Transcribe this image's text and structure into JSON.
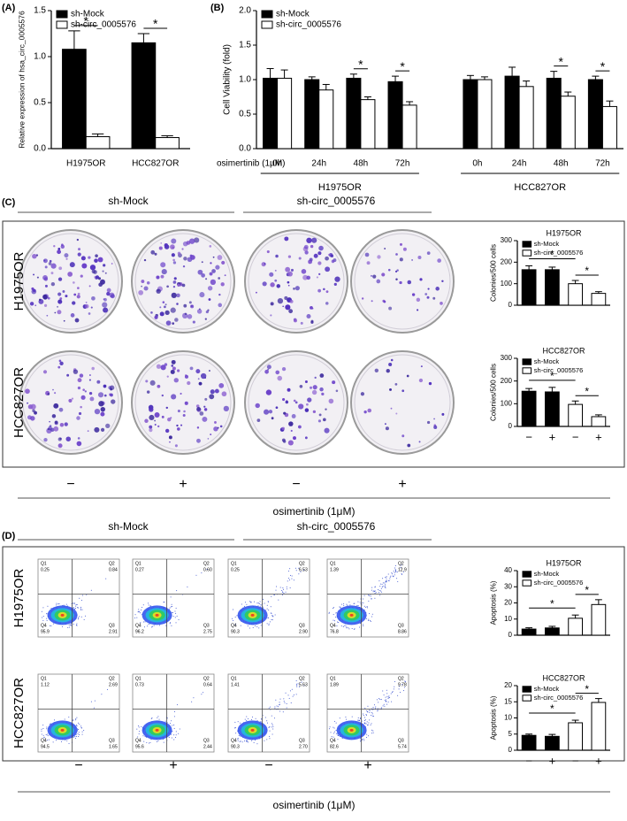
{
  "panels": [
    "(A)",
    "(B)",
    "(C)",
    "(D)"
  ],
  "chart_data": [
    {
      "type": "bar",
      "ylabel": "Relative expression of hsa_circ_0005576",
      "categories": [
        "H1975OR",
        "HCC827OR"
      ],
      "series": [
        {
          "name": "sh-Mock",
          "color": "#000000",
          "values": [
            1.08,
            1.15
          ],
          "errors": [
            0.2,
            0.1
          ]
        },
        {
          "name": "sh-circ_0005576",
          "color": "#ffffff",
          "values": [
            0.13,
            0.12
          ],
          "errors": [
            0.03,
            0.02
          ]
        }
      ],
      "ylim": [
        0,
        1.5
      ],
      "yticks": [
        {
          "value": 0,
          "label": "0.0"
        },
        {
          "value": 0.5,
          "label": "0.5"
        },
        {
          "value": 1,
          "label": "1.0"
        },
        {
          "value": 1.5,
          "label": "1.5"
        }
      ],
      "significance": [
        "*",
        "*"
      ],
      "legend": "upper left"
    },
    {
      "type": "bar",
      "ylabel": "Cell Viability (fold)",
      "xlabel": "osimertinib (1μM)",
      "categories": [
        "0h",
        "24h",
        "48h",
        "72h",
        "0h",
        "24h",
        "48h",
        "72h"
      ],
      "groups": [
        "H1975OR",
        "HCC827OR"
      ],
      "series": [
        {
          "name": "sh-Mock",
          "color": "#000000",
          "values": [
            1.02,
            1.0,
            1.02,
            0.97,
            1.0,
            1.05,
            1.02,
            1.0
          ],
          "errors": [
            0.14,
            0.04,
            0.06,
            0.08,
            0.06,
            0.13,
            0.1,
            0.05
          ]
        },
        {
          "name": "sh-circ_0005576",
          "color": "#ffffff",
          "values": [
            1.02,
            0.85,
            0.71,
            0.63,
            1.0,
            0.9,
            0.76,
            0.61
          ],
          "errors": [
            0.12,
            0.08,
            0.04,
            0.05,
            0.04,
            0.08,
            0.06,
            0.08
          ]
        }
      ],
      "ylim": [
        0,
        2
      ],
      "yticks": [
        {
          "value": 0,
          "label": "0.0"
        },
        {
          "value": 0.5,
          "label": "0.5"
        },
        {
          "value": 1,
          "label": "1.0"
        },
        {
          "value": 1.5,
          "label": "1.5"
        },
        {
          "value": 2,
          "label": "2.0"
        }
      ],
      "significance": [
        null,
        null,
        "*",
        "*",
        null,
        null,
        "*",
        "*"
      ],
      "legend": "upper left"
    },
    {
      "type": "bar",
      "title": "H1975OR",
      "ylabel": "Colonies/500 cells",
      "categories": [
        null,
        null,
        null,
        null
      ],
      "series": [
        {
          "name": "sh-Mock",
          "color": "#000000",
          "values": [
            165,
            165,
            null,
            null
          ],
          "errors": [
            18,
            12,
            null,
            null
          ]
        },
        {
          "name": "sh-circ_0005576",
          "color": "#ffffff",
          "values": [
            null,
            null,
            100,
            55
          ],
          "errors": [
            null,
            null,
            15,
            8
          ]
        }
      ],
      "ylim": [
        0,
        300
      ],
      "yticks": [
        0,
        100,
        200,
        300
      ],
      "significance": [
        "*",
        "*"
      ],
      "legend": "upper left"
    },
    {
      "type": "bar",
      "title": "HCC827OR",
      "ylabel": "Colonies/500 cells",
      "categories": [
        "−",
        "+",
        "−",
        "+"
      ],
      "series": [
        {
          "name": "sh-Mock",
          "color": "#000000",
          "values": [
            155,
            152,
            null,
            null
          ],
          "errors": [
            12,
            20,
            null,
            null
          ]
        },
        {
          "name": "sh-circ_0005576",
          "color": "#ffffff",
          "values": [
            null,
            null,
            97,
            43
          ],
          "errors": [
            null,
            null,
            15,
            8
          ]
        }
      ],
      "ylim": [
        0,
        300
      ],
      "yticks": [
        0,
        100,
        200,
        300
      ],
      "significance": [
        "*",
        "*"
      ],
      "legend": "upper left"
    },
    {
      "type": "bar",
      "title": "H1975OR",
      "ylabel": "Apoptosis (%)",
      "categories": [
        null,
        null,
        null,
        null
      ],
      "series": [
        {
          "name": "sh-Mock",
          "color": "#000000",
          "values": [
            3.8,
            4.5,
            null,
            null
          ],
          "errors": [
            0.8,
            1,
            null,
            null
          ]
        },
        {
          "name": "sh-circ_0005576",
          "color": "#ffffff",
          "values": [
            null,
            null,
            10.5,
            19
          ],
          "errors": [
            null,
            null,
            2,
            3
          ]
        }
      ],
      "ylim": [
        0,
        40
      ],
      "yticks": [
        0,
        10,
        20,
        30,
        40
      ],
      "significance": [
        "*",
        "*"
      ],
      "legend": "upper left"
    },
    {
      "type": "bar",
      "title": "HCC827OR",
      "ylabel": "Apoptosis (%)",
      "categories": [
        "−",
        "+",
        "−",
        "+"
      ],
      "series": [
        {
          "name": "sh-Mock",
          "color": "#000000",
          "values": [
            4.6,
            4.3,
            null,
            null
          ],
          "errors": [
            0.4,
            0.6,
            null,
            null
          ]
        },
        {
          "name": "sh-circ_0005576",
          "color": "#ffffff",
          "values": [
            null,
            null,
            8.5,
            14.8
          ],
          "errors": [
            null,
            null,
            0.8,
            1.2
          ]
        }
      ],
      "ylim": [
        0,
        20
      ],
      "yticks": [
        0,
        5,
        10,
        15,
        20
      ],
      "significance": [
        "*",
        "*"
      ],
      "legend": "upper left"
    }
  ],
  "colony": {
    "groups": [
      "sh-Mock",
      "sh-circ_0005576"
    ],
    "rows": [
      "H1975OR",
      "HCC827OR"
    ],
    "treatment": [
      "−",
      "+",
      "−",
      "+"
    ],
    "xlabel": "osimertinib (1μM)"
  },
  "flow": {
    "groups": [
      "sh-Mock",
      "sh-circ_0005576"
    ],
    "rows": [
      "H1975OR",
      "HCC827OR"
    ],
    "treatment": [
      "−",
      "+",
      "−",
      "+"
    ],
    "xlabel": "osimertinib (1μM)",
    "plots": [
      [
        {
          "quadrants": [
            {
              "name": "Q1",
              "value": "0.25"
            },
            {
              "name": "Q2",
              "value": "0.84"
            },
            {
              "name": "Q3",
              "value": "2.91"
            },
            {
              "name": "Q4",
              "value": "95.9"
            }
          ]
        },
        {
          "quadrants": [
            {
              "name": "Q1",
              "value": "0.27"
            },
            {
              "name": "Q2",
              "value": "0.60"
            },
            {
              "name": "Q3",
              "value": "2.75"
            },
            {
              "name": "Q4",
              "value": "96.2"
            }
          ]
        },
        {
          "quadrants": [
            {
              "name": "Q1",
              "value": "0.25"
            },
            {
              "name": "Q2",
              "value": "6.53"
            },
            {
              "name": "Q3",
              "value": "2.90"
            },
            {
              "name": "Q4",
              "value": "90.3"
            }
          ]
        },
        {
          "quadrants": [
            {
              "name": "Q1",
              "value": "1.39"
            },
            {
              "name": "Q2",
              "value": "12.9"
            },
            {
              "name": "Q3",
              "value": "8.86"
            },
            {
              "name": "Q4",
              "value": "76.8"
            }
          ]
        }
      ],
      [
        {
          "quadrants": [
            {
              "name": "Q1",
              "value": "1.12"
            },
            {
              "name": "Q2",
              "value": "2.69"
            },
            {
              "name": "Q3",
              "value": "1.65"
            },
            {
              "name": "Q4",
              "value": "94.5"
            }
          ]
        },
        {
          "quadrants": [
            {
              "name": "Q1",
              "value": "0.73"
            },
            {
              "name": "Q2",
              "value": "0.64"
            },
            {
              "name": "Q3",
              "value": "2.44"
            },
            {
              "name": "Q4",
              "value": "95.6"
            }
          ]
        },
        {
          "quadrants": [
            {
              "name": "Q1",
              "value": "1.41"
            },
            {
              "name": "Q2",
              "value": "5.63"
            },
            {
              "name": "Q3",
              "value": "2.70"
            },
            {
              "name": "Q4",
              "value": "90.3"
            }
          ]
        },
        {
          "quadrants": [
            {
              "name": "Q1",
              "value": "1.89"
            },
            {
              "name": "Q2",
              "value": "9.78"
            },
            {
              "name": "Q3",
              "value": "5.74"
            },
            {
              "name": "Q4",
              "value": "82.6"
            }
          ]
        }
      ]
    ]
  }
}
